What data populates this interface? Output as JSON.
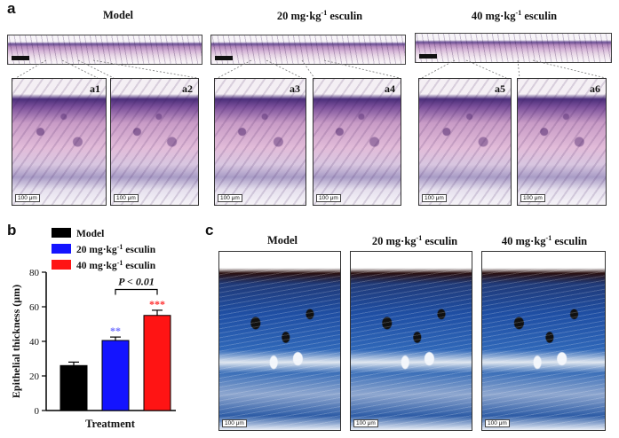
{
  "panel_a": {
    "letter": "a",
    "groups": [
      "Model",
      "20 mg·kg",
      "40 mg·kg"
    ],
    "sup": "-1",
    "suffix": " esculin",
    "tiles": [
      "a1",
      "a2",
      "a3",
      "a4",
      "a5",
      "a6"
    ],
    "scale_label": "100 μm"
  },
  "panel_b": {
    "letter": "b",
    "legend": [
      {
        "label_main": "Model",
        "label_sup": "",
        "label_tail": "",
        "color": "#000000"
      },
      {
        "label_main": "20 mg·kg",
        "label_sup": "-1",
        "label_tail": " esculin",
        "color": "#1414ff"
      },
      {
        "label_main": "40 mg·kg",
        "label_sup": "-1",
        "label_tail": " esculin",
        "color": "#ff1414"
      }
    ],
    "significance": "P < 0.01"
  },
  "panel_c": {
    "letter": "c",
    "groups": [
      "Model",
      "20 mg·kg",
      "40 mg·kg"
    ],
    "sup": "-1",
    "suffix": " esculin",
    "scale_label": "100 μm"
  },
  "chart_data": {
    "type": "bar",
    "categories": [
      "Model",
      "20 mg·kg-1 esculin",
      "40 mg·kg-1 esculin"
    ],
    "values": [
      26,
      40.5,
      55
    ],
    "errors": [
      2,
      2,
      3
    ],
    "stars": [
      "",
      "**",
      "***"
    ],
    "colors": [
      "#000000",
      "#1414ff",
      "#ff1414"
    ],
    "xlabel": "Treatment",
    "ylabel": "Epithelial thickness (μm)",
    "ylim": [
      0,
      80
    ],
    "yticks": [
      0,
      20,
      40,
      60,
      80
    ]
  }
}
